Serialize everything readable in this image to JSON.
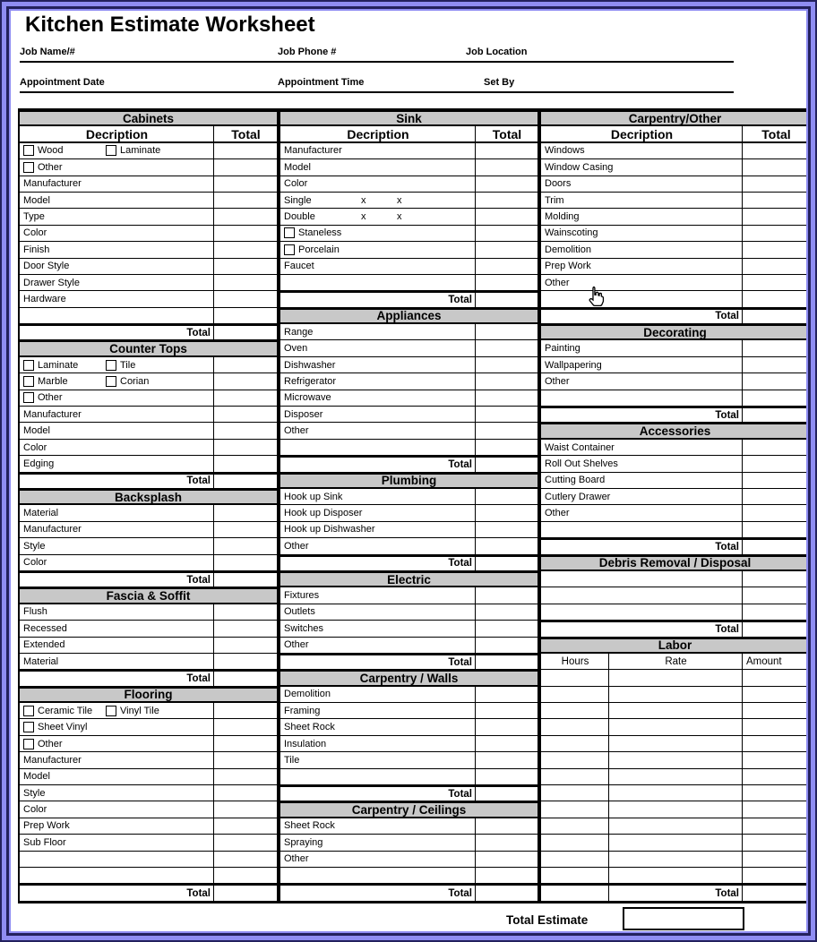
{
  "page": {
    "title": "Kitchen Estimate Worksheet",
    "fields_row1": [
      "Job Name/#",
      "Job Phone #",
      "Job Location"
    ],
    "fields_row2": [
      "Appointment Date",
      "Appointment Time",
      "Set By"
    ],
    "total_estimate_label": "Total Estimate",
    "total_estimate_value": ""
  },
  "icons": {
    "cursor": "hand-pointer-icon"
  },
  "colors": {
    "header_bg": "#c8c8c8",
    "frame": "#8f8df3",
    "frame_line": "#23215e"
  },
  "columns": [
    {
      "css": "c1",
      "name": "cabinets-column",
      "rows": [
        {
          "t": "header",
          "label": "Cabinets"
        },
        {
          "t": "sub",
          "description": "Decription",
          "total": "Total"
        },
        {
          "t": "check",
          "items": [
            "Wood",
            "Laminate"
          ]
        },
        {
          "t": "check",
          "items": [
            "Other"
          ]
        },
        {
          "t": "item",
          "label": "Manufacturer"
        },
        {
          "t": "item",
          "label": "Model"
        },
        {
          "t": "item",
          "label": "Type"
        },
        {
          "t": "item",
          "label": "Color"
        },
        {
          "t": "item",
          "label": "Finish"
        },
        {
          "t": "item",
          "label": "Door Style"
        },
        {
          "t": "item",
          "label": "Drawer Style"
        },
        {
          "t": "item",
          "label": "Hardware"
        },
        {
          "t": "blank"
        },
        {
          "t": "total",
          "label": "Total"
        },
        {
          "t": "header",
          "label": "Counter Tops"
        },
        {
          "t": "check",
          "items": [
            "Laminate",
            "Tile"
          ]
        },
        {
          "t": "check",
          "items": [
            "Marble",
            "Corian"
          ]
        },
        {
          "t": "check",
          "items": [
            "Other"
          ]
        },
        {
          "t": "item",
          "label": "Manufacturer"
        },
        {
          "t": "item",
          "label": "Model"
        },
        {
          "t": "item",
          "label": "Color"
        },
        {
          "t": "item",
          "label": "Edging"
        },
        {
          "t": "total",
          "label": "Total"
        },
        {
          "t": "header",
          "label": "Backsplash"
        },
        {
          "t": "item",
          "label": "Material"
        },
        {
          "t": "item",
          "label": "Manufacturer"
        },
        {
          "t": "item",
          "label": "Style"
        },
        {
          "t": "item",
          "label": "Color"
        },
        {
          "t": "total",
          "label": "Total"
        },
        {
          "t": "header",
          "label": "Fascia & Soffit"
        },
        {
          "t": "item",
          "label": "Flush"
        },
        {
          "t": "item",
          "label": "Recessed"
        },
        {
          "t": "item",
          "label": "Extended"
        },
        {
          "t": "item",
          "label": "Material"
        },
        {
          "t": "total",
          "label": "Total"
        },
        {
          "t": "header",
          "label": "Flooring"
        },
        {
          "t": "check",
          "items": [
            "Ceramic Tile",
            "Vinyl Tile"
          ]
        },
        {
          "t": "check",
          "items": [
            "Sheet Vinyl"
          ]
        },
        {
          "t": "check",
          "items": [
            "Other"
          ]
        },
        {
          "t": "item",
          "label": "Manufacturer"
        },
        {
          "t": "item",
          "label": "Model"
        },
        {
          "t": "item",
          "label": "Style"
        },
        {
          "t": "item",
          "label": "Color"
        },
        {
          "t": "item",
          "label": "Prep Work"
        },
        {
          "t": "item",
          "label": "Sub Floor"
        },
        {
          "t": "blank"
        },
        {
          "t": "blank"
        },
        {
          "t": "total",
          "label": "Total"
        }
      ]
    },
    {
      "css": "c2",
      "name": "sink-column",
      "rows": [
        {
          "t": "header",
          "label": "Sink"
        },
        {
          "t": "sub",
          "description": "Decription",
          "total": "Total"
        },
        {
          "t": "item",
          "label": "Manufacturer"
        },
        {
          "t": "item",
          "label": "Model"
        },
        {
          "t": "item",
          "label": "Color"
        },
        {
          "t": "dims",
          "label": "Single",
          "marks": [
            "x",
            "x"
          ]
        },
        {
          "t": "dims",
          "label": "Double",
          "marks": [
            "x",
            "x"
          ]
        },
        {
          "t": "check",
          "items": [
            "Staneless"
          ]
        },
        {
          "t": "check",
          "items": [
            "Porcelain"
          ]
        },
        {
          "t": "item",
          "label": "Faucet"
        },
        {
          "t": "blank"
        },
        {
          "t": "total",
          "label": "Total"
        },
        {
          "t": "header",
          "label": "Appliances"
        },
        {
          "t": "item",
          "label": "Range"
        },
        {
          "t": "item",
          "label": "Oven"
        },
        {
          "t": "item",
          "label": "Dishwasher"
        },
        {
          "t": "item",
          "label": "Refrigerator"
        },
        {
          "t": "item",
          "label": "Microwave"
        },
        {
          "t": "item",
          "label": "Disposer"
        },
        {
          "t": "item",
          "label": "Other"
        },
        {
          "t": "blank"
        },
        {
          "t": "total",
          "label": "Total"
        },
        {
          "t": "header",
          "label": "Plumbing"
        },
        {
          "t": "item",
          "label": "Hook up Sink"
        },
        {
          "t": "item",
          "label": "Hook up Disposer"
        },
        {
          "t": "item",
          "label": "Hook up Dishwasher"
        },
        {
          "t": "item",
          "label": "Other"
        },
        {
          "t": "total",
          "label": "Total"
        },
        {
          "t": "header",
          "label": "Electric"
        },
        {
          "t": "item",
          "label": "Fixtures"
        },
        {
          "t": "item",
          "label": "Outlets"
        },
        {
          "t": "item",
          "label": "Switches"
        },
        {
          "t": "item",
          "label": "Other"
        },
        {
          "t": "total",
          "label": "Total"
        },
        {
          "t": "header",
          "label": "Carpentry / Walls"
        },
        {
          "t": "item",
          "label": "Demolition"
        },
        {
          "t": "item",
          "label": "Framing"
        },
        {
          "t": "item",
          "label": "Sheet Rock"
        },
        {
          "t": "item",
          "label": "Insulation"
        },
        {
          "t": "item",
          "label": "Tile"
        },
        {
          "t": "blank"
        },
        {
          "t": "total",
          "label": "Total"
        },
        {
          "t": "header",
          "label": "Carpentry / Ceilings"
        },
        {
          "t": "item",
          "label": "Sheet Rock"
        },
        {
          "t": "item",
          "label": "Spraying"
        },
        {
          "t": "item",
          "label": "Other"
        },
        {
          "t": "blank"
        },
        {
          "t": "total",
          "label": "Total"
        }
      ]
    },
    {
      "css": "c3",
      "name": "carpentry-other-column",
      "rows": [
        {
          "t": "header",
          "label": "Carpentry/Other"
        },
        {
          "t": "sub",
          "description": "Decription",
          "total": "Total"
        },
        {
          "t": "item",
          "label": "Windows"
        },
        {
          "t": "item",
          "label": "Window Casing"
        },
        {
          "t": "item",
          "label": "Doors"
        },
        {
          "t": "item",
          "label": "Trim"
        },
        {
          "t": "item",
          "label": "Molding"
        },
        {
          "t": "item",
          "label": "Wainscoting"
        },
        {
          "t": "item",
          "label": "Demolition"
        },
        {
          "t": "item",
          "label": "Prep Work"
        },
        {
          "t": "item",
          "label": "Other"
        },
        {
          "t": "blank"
        },
        {
          "t": "total",
          "label": "Total"
        },
        {
          "t": "header",
          "label": "Decorating"
        },
        {
          "t": "item",
          "label": "Painting"
        },
        {
          "t": "item",
          "label": "Wallpapering"
        },
        {
          "t": "item",
          "label": "Other"
        },
        {
          "t": "blank"
        },
        {
          "t": "total",
          "label": "Total"
        },
        {
          "t": "header",
          "label": "Accessories"
        },
        {
          "t": "item",
          "label": "Waist Container"
        },
        {
          "t": "item",
          "label": "Roll Out Shelves"
        },
        {
          "t": "item",
          "label": "Cutting Board"
        },
        {
          "t": "item",
          "label": "Cutlery Drawer"
        },
        {
          "t": "item",
          "label": "Other"
        },
        {
          "t": "blank"
        },
        {
          "t": "total",
          "label": "Total"
        },
        {
          "t": "header",
          "label": "Debris Removal / Disposal"
        },
        {
          "t": "blank"
        },
        {
          "t": "blank"
        },
        {
          "t": "blank"
        },
        {
          "t": "total",
          "label": "Total"
        },
        {
          "t": "header",
          "label": "Labor"
        },
        {
          "t": "labor_sub",
          "cols": [
            "Hours",
            "Rate",
            "Amount"
          ]
        },
        {
          "t": "labor_row"
        },
        {
          "t": "labor_row"
        },
        {
          "t": "labor_row"
        },
        {
          "t": "labor_row"
        },
        {
          "t": "labor_row"
        },
        {
          "t": "labor_row"
        },
        {
          "t": "labor_row"
        },
        {
          "t": "labor_row"
        },
        {
          "t": "labor_row"
        },
        {
          "t": "labor_row"
        },
        {
          "t": "labor_row"
        },
        {
          "t": "labor_row"
        },
        {
          "t": "labor_row"
        },
        {
          "t": "labor_total",
          "label": "Total"
        }
      ]
    }
  ]
}
